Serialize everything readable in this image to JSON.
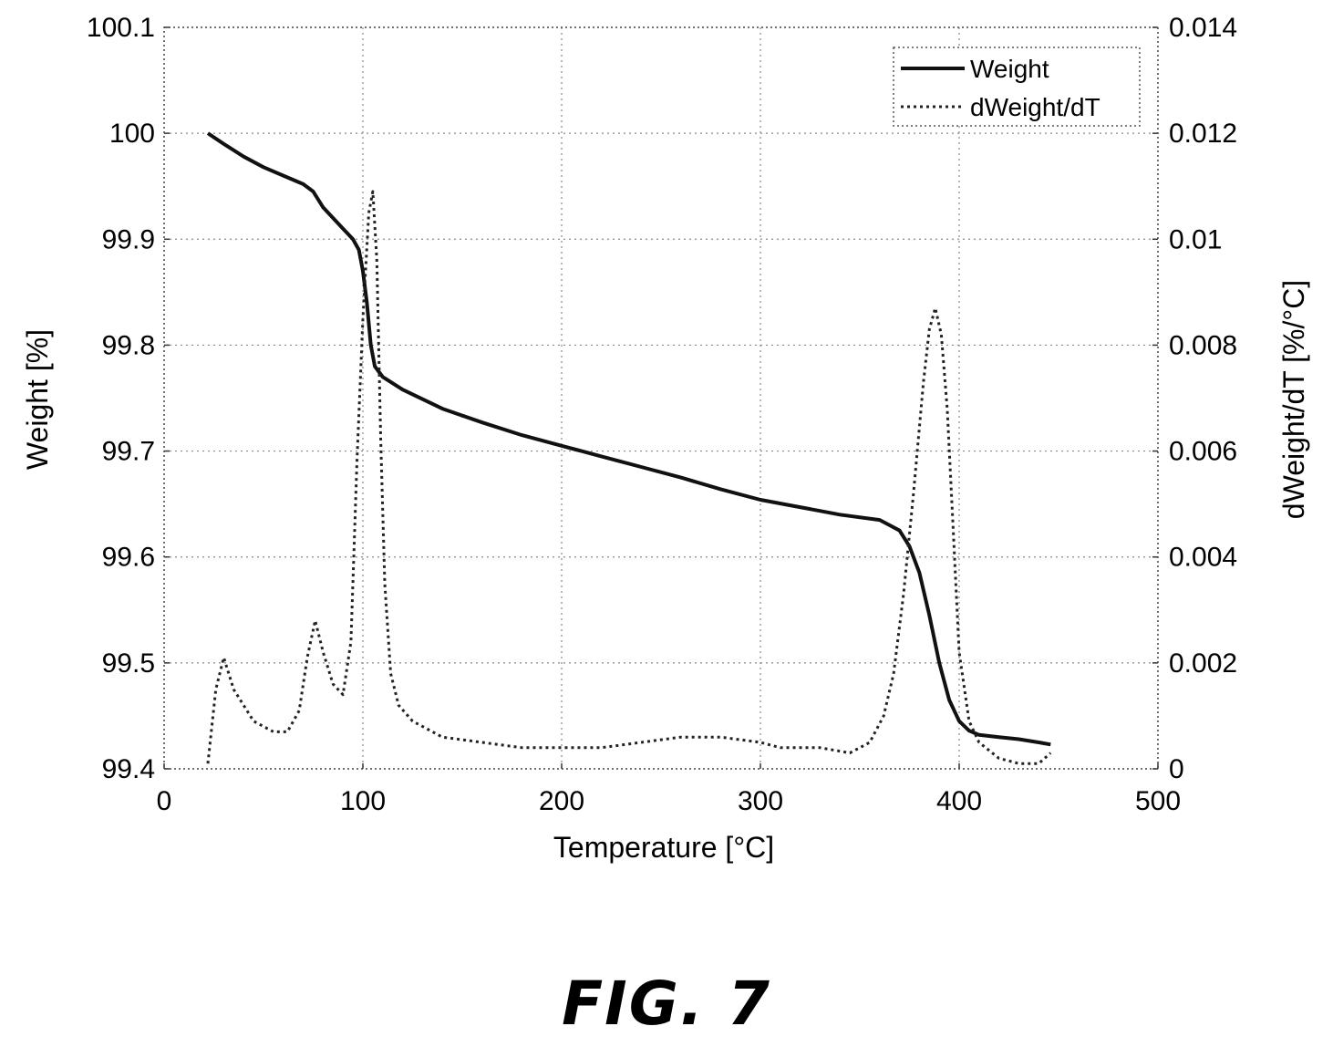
{
  "figure_label": "FIG. 7",
  "chart_data": {
    "type": "line",
    "xlabel": "Temperature [°C]",
    "ylabel_left": "Weight [%]",
    "ylabel_right": "dWeight/dT [%/°C]",
    "xlim": [
      0,
      500
    ],
    "ylim_left": [
      99.4,
      100.1
    ],
    "ylim_right": [
      0,
      0.014
    ],
    "x_ticks": [
      "0",
      "100",
      "200",
      "300",
      "400",
      "500"
    ],
    "y_ticks_left": [
      "99.4",
      "99.5",
      "99.6",
      "99.7",
      "99.8",
      "99.9",
      "100",
      "100.1"
    ],
    "y_ticks_right": [
      "0",
      "0.002",
      "0.004",
      "0.006",
      "0.008",
      "0.01",
      "0.012",
      "0.014"
    ],
    "grid": true,
    "legend_position": "top-right",
    "series": [
      {
        "name": "Weight",
        "axis": "left",
        "style": "solid",
        "x": [
          22,
          30,
          40,
          50,
          60,
          70,
          75,
          80,
          90,
          95,
          98,
          100,
          102,
          104,
          106,
          108,
          110,
          120,
          140,
          160,
          180,
          200,
          220,
          240,
          260,
          280,
          300,
          320,
          340,
          360,
          365,
          370,
          375,
          380,
          385,
          390,
          395,
          400,
          405,
          410,
          420,
          430,
          440,
          446
        ],
        "y": [
          100.0,
          99.99,
          99.978,
          99.968,
          99.96,
          99.952,
          99.945,
          99.93,
          99.91,
          99.9,
          99.89,
          99.87,
          99.84,
          99.8,
          99.78,
          99.775,
          99.77,
          99.758,
          99.74,
          99.727,
          99.715,
          99.705,
          99.695,
          99.685,
          99.675,
          99.664,
          99.654,
          99.647,
          99.64,
          99.635,
          99.63,
          99.625,
          99.61,
          99.585,
          99.545,
          99.5,
          99.465,
          99.445,
          99.436,
          99.432,
          99.43,
          99.428,
          99.425,
          99.423
        ]
      },
      {
        "name": "dWeight/dT",
        "axis": "right",
        "style": "dotted",
        "x": [
          22,
          26,
          30,
          35,
          45,
          55,
          62,
          68,
          72,
          76,
          80,
          85,
          90,
          94,
          97,
          100,
          103,
          105,
          107,
          109,
          111,
          114,
          118,
          125,
          140,
          160,
          180,
          200,
          220,
          240,
          260,
          280,
          300,
          310,
          330,
          345,
          355,
          362,
          367,
          372,
          377,
          382,
          385,
          388,
          391,
          394,
          397,
          400,
          405,
          410,
          420,
          430,
          440,
          446
        ],
        "y": [
          0.0001,
          0.0015,
          0.0021,
          0.0015,
          0.0009,
          0.0007,
          0.0007,
          0.0011,
          0.0021,
          0.0028,
          0.0022,
          0.0016,
          0.0014,
          0.0024,
          0.0058,
          0.0085,
          0.0105,
          0.0109,
          0.0096,
          0.0062,
          0.0035,
          0.0018,
          0.0012,
          0.0009,
          0.0006,
          0.0005,
          0.0004,
          0.0004,
          0.0004,
          0.0005,
          0.0006,
          0.0006,
          0.0005,
          0.0004,
          0.0004,
          0.0003,
          0.0005,
          0.001,
          0.0018,
          0.0033,
          0.0052,
          0.0073,
          0.0083,
          0.0087,
          0.0082,
          0.0068,
          0.0045,
          0.0022,
          0.0009,
          0.0005,
          0.0002,
          0.0001,
          0.0001,
          0.0003
        ]
      }
    ]
  }
}
